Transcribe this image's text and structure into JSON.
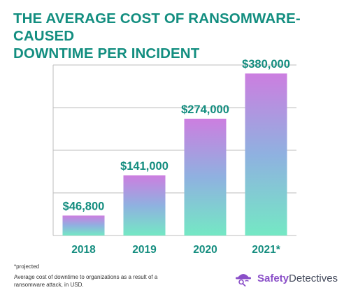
{
  "header": {
    "title_line1": "THE AVERAGE COST OF RANSOMWARE-CAUSED",
    "title_line2": "DOWNTIME PER INCIDENT"
  },
  "chart_data": {
    "type": "bar",
    "title": "THE AVERAGE COST OF RANSOMWARE-CAUSED DOWNTIME PER INCIDENT",
    "categories": [
      "2018",
      "2019",
      "2020",
      "2021*"
    ],
    "values": [
      46800,
      141000,
      274000,
      380000
    ],
    "data_labels": [
      "$46,800",
      "$141,000",
      "$274,000",
      "$380,000"
    ],
    "xlabel": "",
    "ylabel": "",
    "ylim": [
      0,
      400000
    ],
    "grid": "horizontal",
    "colors": {
      "bar_bottom": "#74e8c4",
      "bar_mid": "#8fb1e0",
      "bar_top": "#cc7ee0",
      "label": "#148d7f",
      "axis": "#bdbdbd"
    }
  },
  "footer": {
    "projected_note": "*projected",
    "description": "Average cost of downtime to organizations as a result of a ransomware attack, in USD."
  },
  "brand": {
    "name_bold": "Safety",
    "name_light": "Detectives",
    "logo_icon": "detective-hat-icon",
    "color": "#8a4fc8"
  }
}
